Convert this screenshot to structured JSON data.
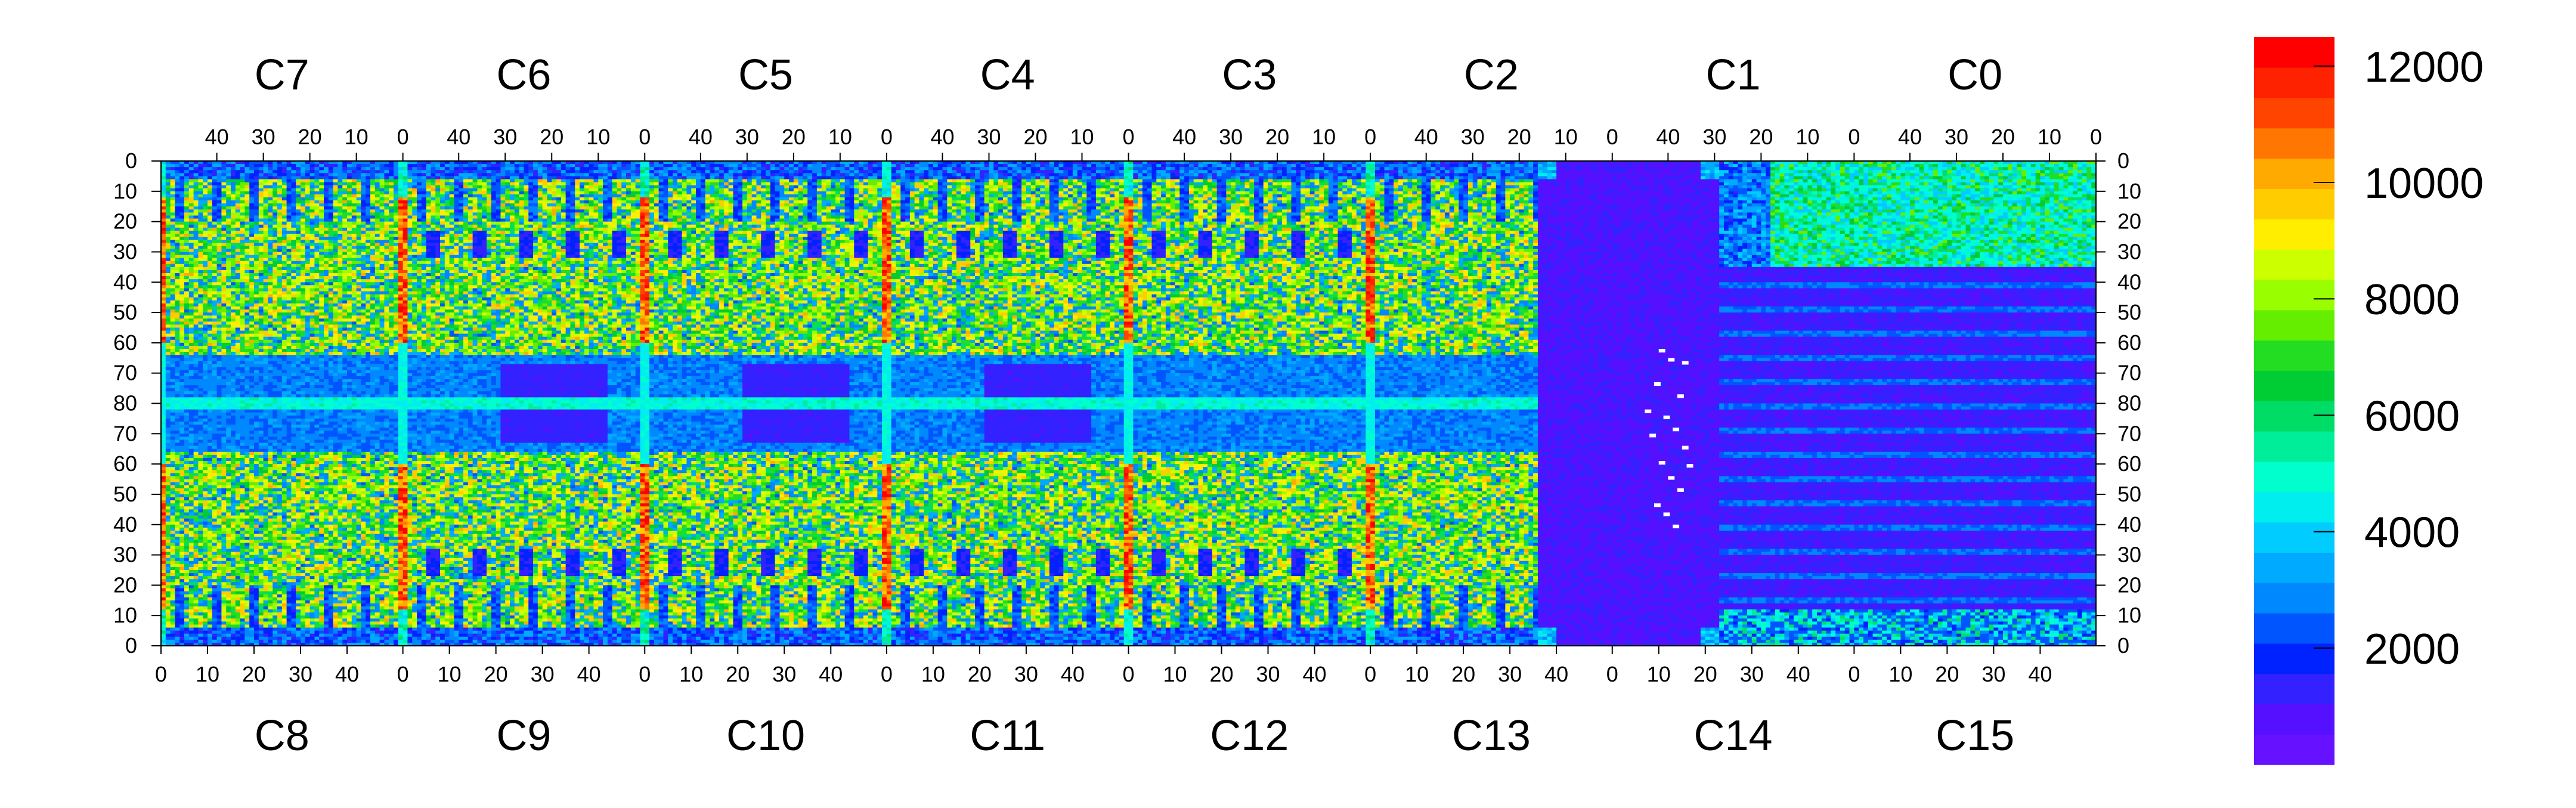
{
  "chart_data": {
    "type": "heatmap",
    "title": "",
    "colorbar": {
      "min": 0,
      "max": 12500,
      "tick_values": [
        2000,
        4000,
        6000,
        8000,
        10000,
        12000
      ],
      "tick_labels": [
        "2000",
        "4000",
        "6000",
        "8000",
        "10000",
        "12000"
      ],
      "colors": [
        "#6611ff",
        "#5511ff",
        "#3322ff",
        "#0022ff",
        "#0055ff",
        "#0088ff",
        "#00aaff",
        "#00ccff",
        "#00eeee",
        "#00ffcc",
        "#00ee99",
        "#00dd66",
        "#00cc33",
        "#22dd22",
        "#66ee00",
        "#99ff00",
        "#ccff00",
        "#ffee00",
        "#ffcc00",
        "#ffaa00",
        "#ff7700",
        "#ff4400",
        "#ff2200",
        "#ff0000"
      ]
    },
    "top_chips": [
      "C7",
      "C6",
      "C5",
      "C4",
      "C3",
      "C2",
      "C1",
      "C0"
    ],
    "bottom_chips": [
      "C8",
      "C9",
      "C10",
      "C11",
      "C12",
      "C13",
      "C14",
      "C15"
    ],
    "top_tick_labels": [
      "40",
      "30",
      "20",
      "10",
      "0"
    ],
    "bottom_tick_labels": [
      "0",
      "10",
      "20",
      "30",
      "40"
    ],
    "y_tick_labels": [
      "0",
      "10",
      "20",
      "30",
      "40",
      "50",
      "60",
      "70",
      "80",
      "70",
      "60",
      "50",
      "40",
      "30",
      "20",
      "10",
      "0"
    ],
    "chip_columns": 52,
    "rows": 160,
    "scale": "linear",
    "grid": false,
    "legend_placement": "right"
  }
}
